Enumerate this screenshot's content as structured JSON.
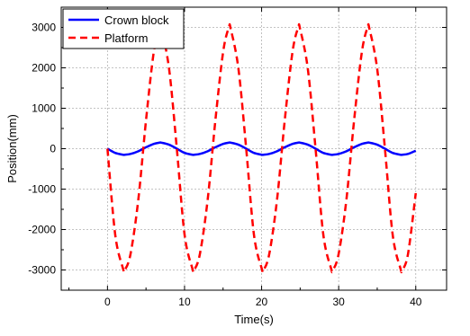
{
  "chart_data": {
    "type": "line",
    "xlabel": "Time(s)",
    "ylabel": "Position(mm)",
    "xlim": [
      -6,
      44
    ],
    "ylim": [
      -3500,
      3500
    ],
    "x_ticks": [
      0,
      10,
      20,
      30,
      40
    ],
    "y_ticks": [
      -3000,
      -2000,
      -1000,
      0,
      1000,
      2000,
      3000
    ],
    "x_ticks_labels": [
      "0",
      "10",
      "20",
      "30",
      "40"
    ],
    "y_ticks_labels": [
      "-3000",
      "-2000",
      "-1000",
      "0",
      "1000",
      "2000",
      "3000"
    ],
    "grid": true,
    "legend_position": "top-left",
    "series": [
      {
        "name": "Crown block",
        "color": "#0000ff",
        "line_style": "solid",
        "x": [
          0,
          1,
          2,
          2.25,
          3,
          4,
          5,
          6,
          6.75,
          7,
          8,
          9,
          10,
          11,
          11.25,
          12,
          13,
          14,
          15,
          15.75,
          16,
          17,
          18,
          19,
          20,
          20.25,
          21,
          22,
          23,
          24,
          24.75,
          25,
          26,
          27,
          28,
          29,
          29.25,
          30,
          31,
          32,
          33,
          33.75,
          34,
          35,
          36,
          37,
          38,
          38.25,
          39,
          40
        ],
        "y": [
          0,
          -105,
          -149,
          -150,
          -130,
          -63,
          35,
          119,
          150,
          148,
          98,
          0,
          -105,
          -149,
          -150,
          -130,
          -63,
          35,
          119,
          150,
          148,
          98,
          0,
          -105,
          -149,
          -150,
          -130,
          -63,
          35,
          119,
          150,
          148,
          98,
          0,
          -105,
          -149,
          -150,
          -130,
          -63,
          35,
          119,
          150,
          148,
          98,
          0,
          -105,
          -149,
          -150,
          -130,
          -50
        ]
      },
      {
        "name": "Platform",
        "color": "#ff0000",
        "line_style": "dashed",
        "x": [
          0,
          1,
          2,
          2.25,
          3,
          4,
          5,
          6,
          6.75,
          7,
          8,
          9,
          10,
          11,
          11.25,
          12,
          13,
          14,
          15,
          15.75,
          16,
          17,
          18,
          19,
          20,
          20.25,
          21,
          22,
          23,
          24,
          24.75,
          25,
          26,
          27,
          28,
          29,
          29.25,
          30,
          31,
          32,
          33,
          33.75,
          34,
          35,
          36,
          37,
          38,
          38.25,
          39,
          40
        ],
        "y": [
          0,
          -2121,
          -2954,
          -3000,
          -2598,
          -1263,
          700,
          2384,
          3000,
          2954,
          1968,
          0,
          -2121,
          -2954,
          -3000,
          -2598,
          -1263,
          700,
          2384,
          3000,
          2954,
          1968,
          0,
          -2121,
          -2954,
          -3000,
          -2598,
          -1263,
          700,
          2384,
          3000,
          2954,
          1968,
          0,
          -2121,
          -2954,
          -3000,
          -2598,
          -1263,
          700,
          2384,
          3000,
          2954,
          1968,
          0,
          -2121,
          -2954,
          -3000,
          -2598,
          -1100
        ]
      }
    ]
  }
}
